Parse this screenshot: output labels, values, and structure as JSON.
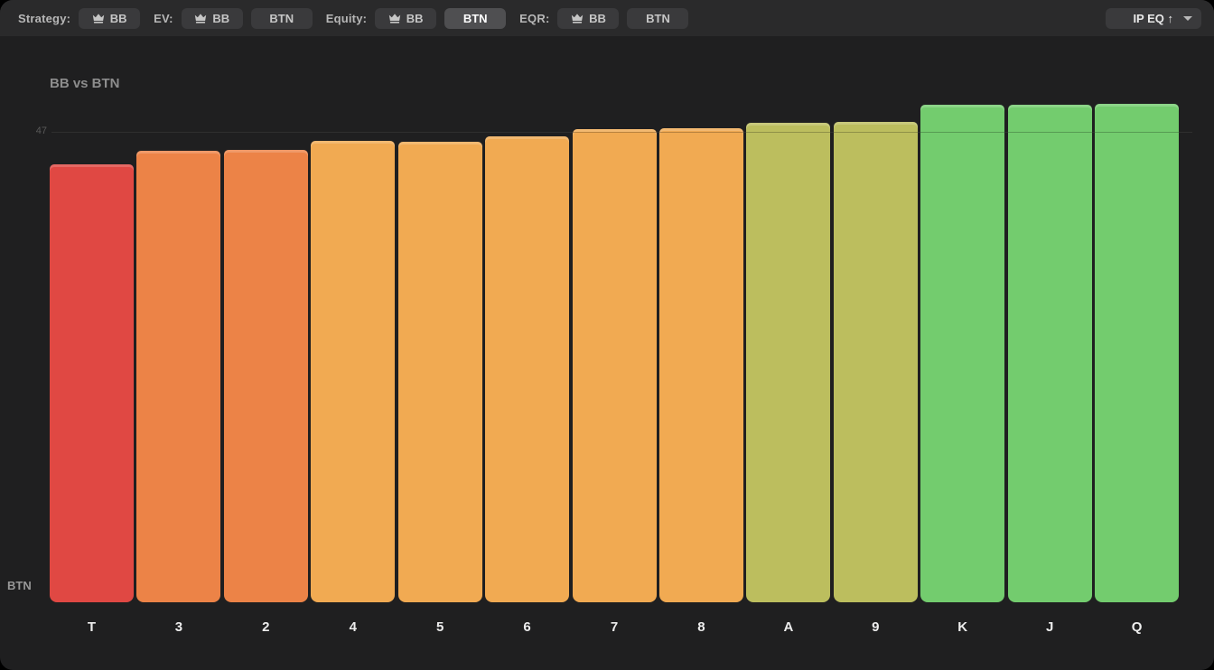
{
  "colors": {
    "window_background": "#1f1f20",
    "toolbar_background": "#2a2a2b",
    "button_background": "#3a3a3c",
    "button_active_background": "#4f4f51",
    "gridline": "#3e3e3f"
  },
  "toolbar": {
    "groups": [
      {
        "label": "Strategy:",
        "buttons": [
          {
            "label": "BB",
            "icon": "crown",
            "active": false
          }
        ]
      },
      {
        "label": "EV:",
        "buttons": [
          {
            "label": "BB",
            "icon": "crown",
            "active": false
          },
          {
            "label": "BTN",
            "active": false
          }
        ]
      },
      {
        "label": "Equity:",
        "buttons": [
          {
            "label": "BB",
            "icon": "crown",
            "active": false
          },
          {
            "label": "BTN",
            "active": true
          }
        ]
      },
      {
        "label": "EQR:",
        "buttons": [
          {
            "label": "BB",
            "icon": "crown",
            "active": false
          },
          {
            "label": "BTN",
            "active": false
          }
        ]
      }
    ],
    "sort": {
      "value": "IP EQ ↑"
    }
  },
  "chart": {
    "title": "BB vs BTN",
    "baseline_label": "BTN",
    "tick_label": "47"
  },
  "chart_data": {
    "type": "bar",
    "title": "BB vs BTN",
    "categories": [
      "T",
      "3",
      "2",
      "4",
      "5",
      "6",
      "7",
      "8",
      "A",
      "9",
      "K",
      "J",
      "Q"
    ],
    "values": [
      43.8,
      45.1,
      45.2,
      46.1,
      46.0,
      46.6,
      47.3,
      47.4,
      47.9,
      48.0,
      49.7,
      49.7,
      49.8
    ],
    "bar_colors": [
      "#e04843",
      "#ec8347",
      "#ec8347",
      "#f1aa52",
      "#f1aa52",
      "#f1aa52",
      "#f1aa52",
      "#f1aa52",
      "#bcbe5e",
      "#bcbe5e",
      "#73cc6e",
      "#73cc6e",
      "#73cc6e"
    ],
    "ylim": [
      0,
      50.25
    ],
    "gridlines": [
      47
    ],
    "xlabel": "",
    "ylabel": "",
    "legend": "none",
    "grid": "single horizontal line at 47"
  }
}
